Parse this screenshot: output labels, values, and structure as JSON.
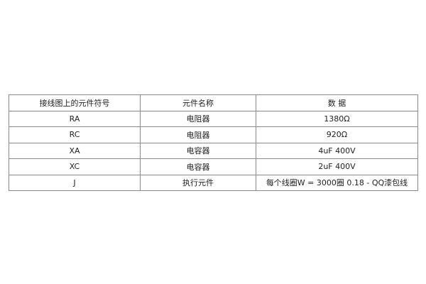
{
  "table": {
    "headers": [
      "接线图上的元件符号",
      "元件名称",
      "数 据"
    ],
    "rows": [
      [
        "RA",
        "电阻器",
        "1380Ω"
      ],
      [
        "RC",
        "电阻器",
        "920Ω"
      ],
      [
        "XA",
        "电容器",
        "4uF 400V"
      ],
      [
        "XC",
        "电容器",
        "2uF 400V"
      ],
      [
        "J",
        "执行元件",
        "每个线圈W = 3000圈 0.18 - QQ漆包线"
      ]
    ]
  }
}
